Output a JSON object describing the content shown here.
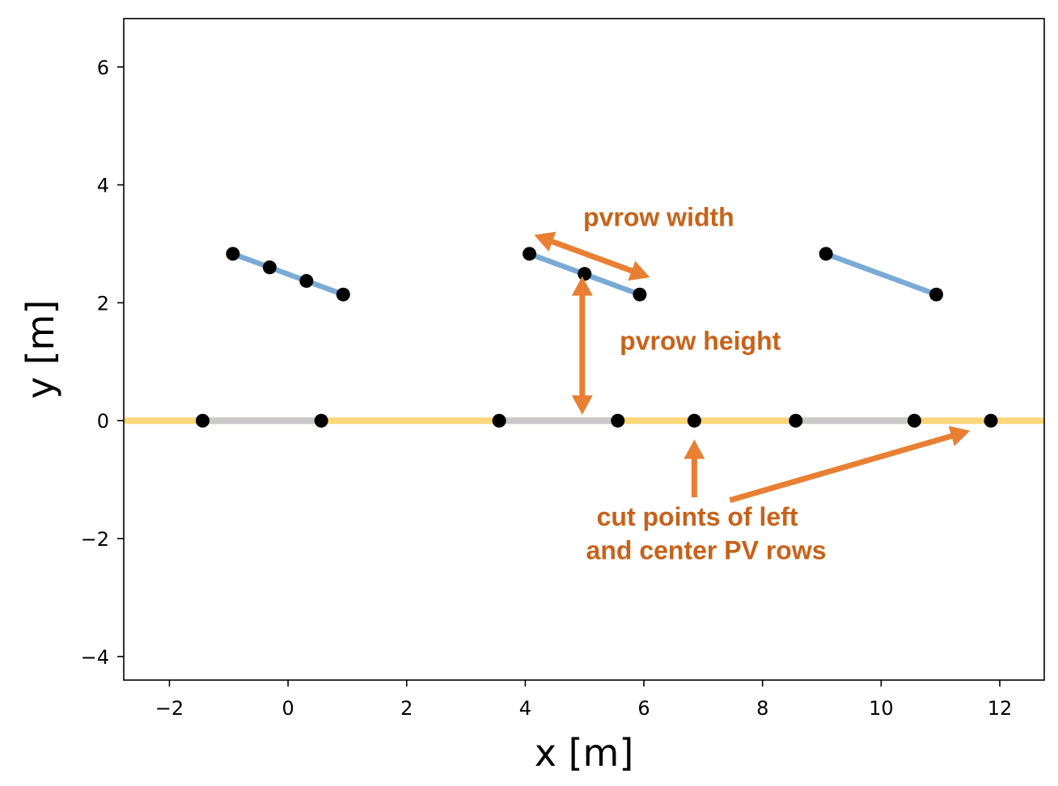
{
  "chart_data": {
    "type": "line",
    "xlabel": "x [m]",
    "ylabel": "y [m]",
    "xlim": [
      -2.77,
      12.75
    ],
    "ylim": [
      -4.4,
      6.82
    ],
    "xticks": [
      -2,
      0,
      2,
      4,
      6,
      8,
      10,
      12
    ],
    "yticks": [
      -4,
      -2,
      0,
      2,
      4,
      6
    ],
    "xtick_labels": [
      "−2",
      "0",
      "2",
      "4",
      "6",
      "8",
      "10",
      "12"
    ],
    "ytick_labels": [
      "−4",
      "−2",
      "0",
      "2",
      "4",
      "6"
    ],
    "grid": false,
    "colors": {
      "pvrow": "#7aaad6",
      "ground_illuminated": "#fdd67a",
      "ground_shaded": "#c8c8c8",
      "points": "#000000",
      "annotation": "#e87f33",
      "annotation_text": "#c7621a"
    },
    "pvrows": [
      {
        "x": [
          -0.93,
          -0.31,
          0.31,
          0.93
        ],
        "y": [
          2.83,
          2.6,
          2.37,
          2.14
        ]
      },
      {
        "x": [
          4.07,
          5.0,
          5.93
        ],
        "y": [
          2.83,
          2.49,
          2.14
        ]
      },
      {
        "x": [
          9.07,
          10.93
        ],
        "y": [
          2.83,
          2.14
        ]
      }
    ],
    "ground": {
      "line": {
        "x": [
          -2.77,
          12.75
        ],
        "y": [
          0,
          0
        ]
      },
      "shaded_segments": [
        [
          -1.44,
          0.56
        ],
        [
          3.56,
          5.56
        ],
        [
          8.56,
          10.56
        ]
      ],
      "points_x": [
        -1.44,
        0.56,
        3.56,
        5.56,
        6.85,
        8.56,
        10.56,
        11.85
      ]
    },
    "annotations": [
      {
        "text": "pvrow width",
        "x": 6.25,
        "y": 3.3
      },
      {
        "text": "pvrow height",
        "x": 6.95,
        "y": 1.2
      },
      {
        "text": "cut points of left",
        "x": 6.9,
        "y": -1.78
      },
      {
        "text": "and center PV rows",
        "x": 7.05,
        "y": -2.35
      }
    ],
    "arrows": [
      {
        "from": [
          4.15,
          3.15
        ],
        "to": [
          6.1,
          2.43
        ],
        "double": true
      },
      {
        "from": [
          4.96,
          2.45
        ],
        "to": [
          4.96,
          0.1
        ],
        "double": true
      },
      {
        "from": [
          6.85,
          -1.3
        ],
        "to": [
          6.85,
          -0.32
        ],
        "double": false
      },
      {
        "from": [
          7.45,
          -1.35
        ],
        "to": [
          11.5,
          -0.17
        ],
        "double": false
      }
    ]
  }
}
